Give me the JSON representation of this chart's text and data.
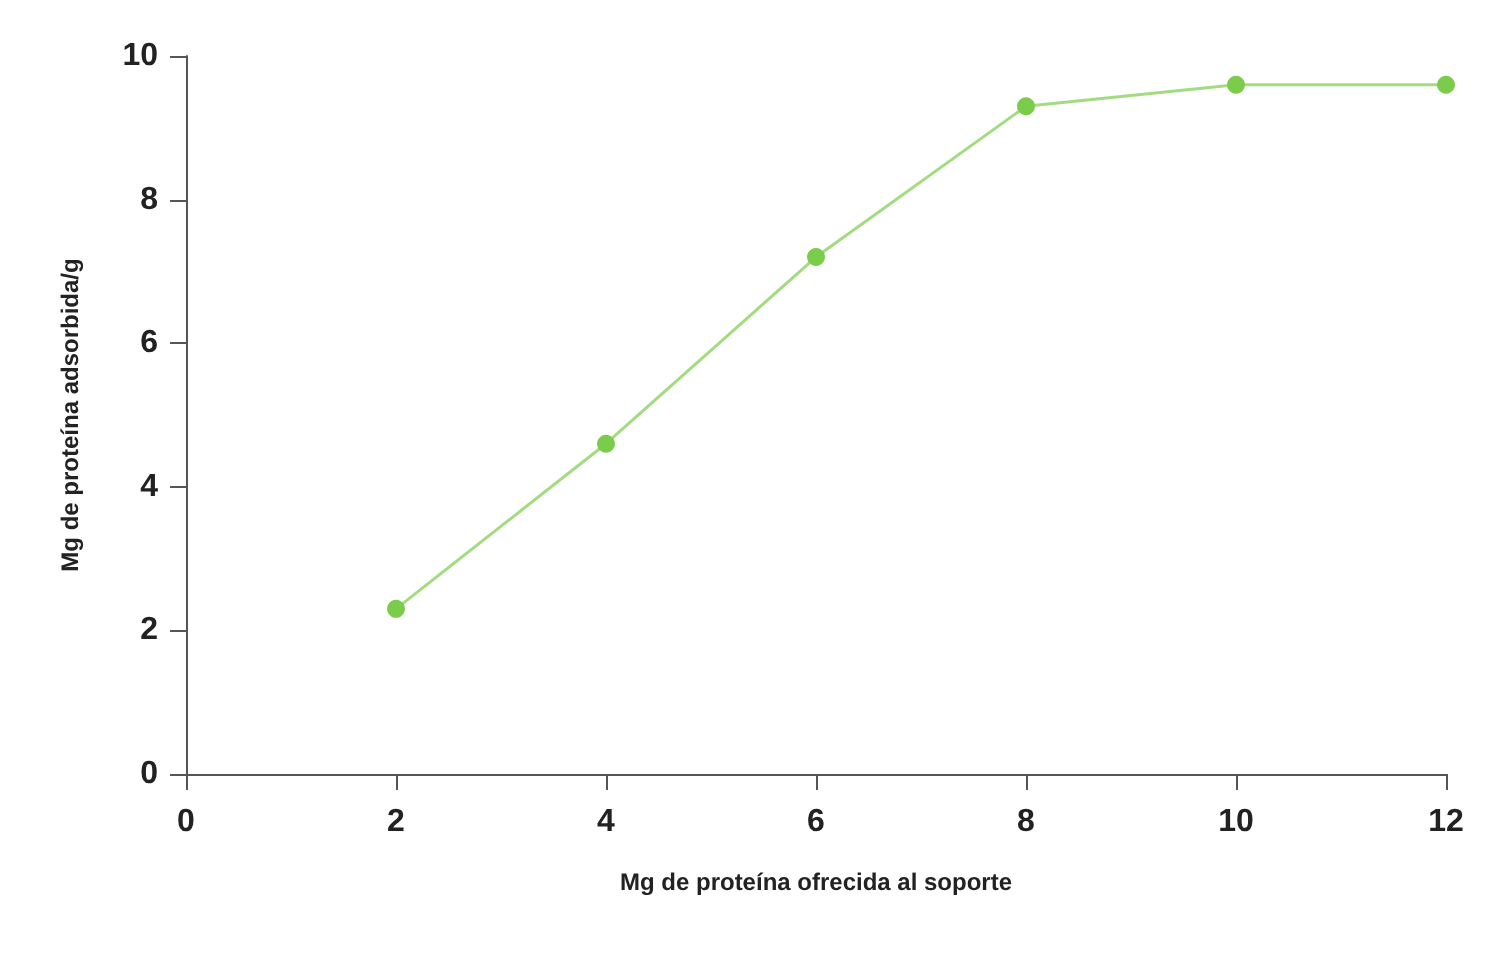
{
  "chart_data": {
    "type": "line",
    "xlabel": "Mg de proteína ofrecida al soporte",
    "ylabel": "Mg de proteína adsorbida/g",
    "x": [
      2,
      4,
      6,
      8,
      10,
      12
    ],
    "series": [
      {
        "color": "#7ccc4c",
        "values": [
          2.3,
          4.6,
          7.2,
          9.3,
          9.6,
          9.6
        ]
      }
    ],
    "xlim": [
      0,
      12
    ],
    "xticks": [
      0,
      2,
      4,
      6,
      8,
      10,
      12
    ],
    "ylim": [
      0,
      10
    ],
    "yticks": [
      0,
      2,
      4,
      6,
      8,
      10
    ],
    "grid": false,
    "marker": "circle",
    "line_style": "solid"
  }
}
